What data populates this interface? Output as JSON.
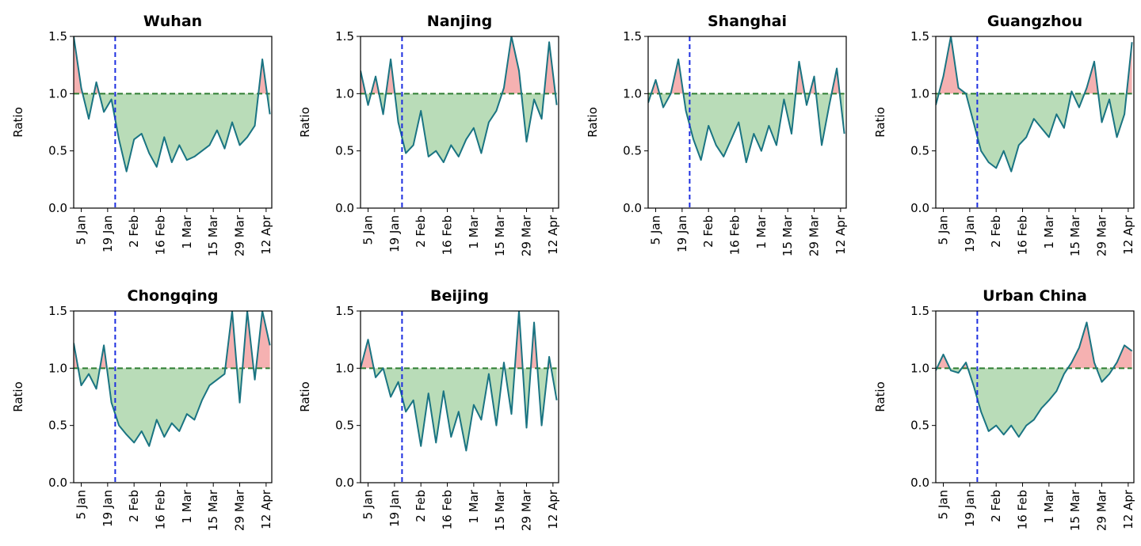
{
  "figure": {
    "charts": [
      {
        "title": "Wuhan",
        "ylabel": "Ratio",
        "lockdown_date": "2020-01-23"
      },
      {
        "title": "Nanjing",
        "ylabel": "Ratio",
        "lockdown_date": "2020-01-23"
      },
      {
        "title": "Shanghai",
        "ylabel": "Ratio",
        "lockdown_date": "2020-01-23"
      },
      {
        "title": "Guangzhou",
        "ylabel": "Ratio",
        "lockdown_date": "2020-01-23"
      },
      {
        "title": "Chongqing",
        "ylabel": "Ratio",
        "lockdown_date": "2020-01-23"
      },
      {
        "title": "Beijing",
        "ylabel": "Ratio",
        "lockdown_date": "2020-01-23"
      },
      {
        "title": "Urban China",
        "ylabel": "Ratio",
        "lockdown_date": "2020-01-23"
      }
    ]
  },
  "chart_data": [
    {
      "type": "line",
      "title": "Wuhan",
      "xlabel": "",
      "ylabel": "Ratio",
      "ylim": [
        0,
        1.5
      ],
      "yticks": [
        "0.0",
        "0.5",
        "1.0",
        "1.5"
      ],
      "xlim": [
        "2020-01-01",
        "2020-04-15"
      ],
      "xticks": [
        {
          "label": "5 Jan",
          "date": "2020-01-05"
        },
        {
          "label": "19 Jan",
          "date": "2020-01-19"
        },
        {
          "label": "2 Feb",
          "date": "2020-02-02"
        },
        {
          "label": "16 Feb",
          "date": "2020-02-16"
        },
        {
          "label": "1 Mar",
          "date": "2020-03-01"
        },
        {
          "label": "15 Mar",
          "date": "2020-03-15"
        },
        {
          "label": "29 Mar",
          "date": "2020-03-29"
        },
        {
          "label": "12 Apr",
          "date": "2020-04-12"
        }
      ],
      "grid": false,
      "reference_line": 1.0,
      "colors": {
        "line": "#1a7482",
        "below_fill": "#b9dcb8",
        "above_fill": "#f5b1b1",
        "reference": "#2e7d32",
        "vertical": "#1d2ee0"
      },
      "x": [
        "2020-01-01",
        "2020-01-05",
        "2020-01-09",
        "2020-01-13",
        "2020-01-17",
        "2020-01-21",
        "2020-01-25",
        "2020-01-29",
        "2020-02-02",
        "2020-02-06",
        "2020-02-10",
        "2020-02-14",
        "2020-02-18",
        "2020-02-22",
        "2020-02-26",
        "2020-03-01",
        "2020-03-05",
        "2020-03-09",
        "2020-03-13",
        "2020-03-17",
        "2020-03-21",
        "2020-03-25",
        "2020-03-29",
        "2020-04-02",
        "2020-04-06",
        "2020-04-10",
        "2020-04-14"
      ],
      "values": [
        1.5,
        1.05,
        0.78,
        1.1,
        0.84,
        0.95,
        0.6,
        0.32,
        0.6,
        0.65,
        0.48,
        0.36,
        0.62,
        0.4,
        0.55,
        0.42,
        0.45,
        0.5,
        0.55,
        0.68,
        0.52,
        0.75,
        0.55,
        0.62,
        0.72,
        1.3,
        0.82
      ]
    },
    {
      "type": "line",
      "title": "Nanjing",
      "xlabel": "",
      "ylabel": "Ratio",
      "ylim": [
        0,
        1.5
      ],
      "yticks": [
        "0.0",
        "0.5",
        "1.0",
        "1.5"
      ],
      "xlim": [
        "2020-01-01",
        "2020-04-15"
      ],
      "xticks": [
        {
          "label": "5 Jan",
          "date": "2020-01-05"
        },
        {
          "label": "19 Jan",
          "date": "2020-01-19"
        },
        {
          "label": "2 Feb",
          "date": "2020-02-02"
        },
        {
          "label": "16 Feb",
          "date": "2020-02-16"
        },
        {
          "label": "1 Mar",
          "date": "2020-03-01"
        },
        {
          "label": "15 Mar",
          "date": "2020-03-15"
        },
        {
          "label": "29 Mar",
          "date": "2020-03-29"
        },
        {
          "label": "12 Apr",
          "date": "2020-04-12"
        }
      ],
      "grid": false,
      "reference_line": 1.0,
      "colors": {
        "line": "#1a7482",
        "below_fill": "#b9dcb8",
        "above_fill": "#f5b1b1",
        "reference": "#2e7d32",
        "vertical": "#1d2ee0"
      },
      "x": [
        "2020-01-01",
        "2020-01-05",
        "2020-01-09",
        "2020-01-13",
        "2020-01-17",
        "2020-01-21",
        "2020-01-25",
        "2020-01-29",
        "2020-02-02",
        "2020-02-06",
        "2020-02-10",
        "2020-02-14",
        "2020-02-18",
        "2020-02-22",
        "2020-02-26",
        "2020-03-01",
        "2020-03-05",
        "2020-03-09",
        "2020-03-13",
        "2020-03-17",
        "2020-03-21",
        "2020-03-25",
        "2020-03-29",
        "2020-04-02",
        "2020-04-06",
        "2020-04-10",
        "2020-04-14"
      ],
      "values": [
        1.2,
        0.9,
        1.15,
        0.82,
        1.3,
        0.75,
        0.48,
        0.55,
        0.85,
        0.45,
        0.5,
        0.4,
        0.55,
        0.45,
        0.6,
        0.7,
        0.48,
        0.75,
        0.85,
        1.05,
        1.5,
        1.2,
        0.58,
        0.95,
        0.78,
        1.45,
        0.9
      ]
    },
    {
      "type": "line",
      "title": "Shanghai",
      "xlabel": "",
      "ylabel": "Ratio",
      "ylim": [
        0,
        1.5
      ],
      "yticks": [
        "0.0",
        "0.5",
        "1.0",
        "1.5"
      ],
      "xlim": [
        "2020-01-01",
        "2020-04-15"
      ],
      "xticks": [
        {
          "label": "5 Jan",
          "date": "2020-01-05"
        },
        {
          "label": "19 Jan",
          "date": "2020-01-19"
        },
        {
          "label": "2 Feb",
          "date": "2020-02-02"
        },
        {
          "label": "16 Feb",
          "date": "2020-02-16"
        },
        {
          "label": "1 Mar",
          "date": "2020-03-01"
        },
        {
          "label": "15 Mar",
          "date": "2020-03-15"
        },
        {
          "label": "29 Mar",
          "date": "2020-03-29"
        },
        {
          "label": "12 Apr",
          "date": "2020-04-12"
        }
      ],
      "grid": false,
      "reference_line": 1.0,
      "colors": {
        "line": "#1a7482",
        "below_fill": "#b9dcb8",
        "above_fill": "#f5b1b1",
        "reference": "#2e7d32",
        "vertical": "#1d2ee0"
      },
      "x": [
        "2020-01-01",
        "2020-01-05",
        "2020-01-09",
        "2020-01-13",
        "2020-01-17",
        "2020-01-21",
        "2020-01-25",
        "2020-01-29",
        "2020-02-02",
        "2020-02-06",
        "2020-02-10",
        "2020-02-14",
        "2020-02-18",
        "2020-02-22",
        "2020-02-26",
        "2020-03-01",
        "2020-03-05",
        "2020-03-09",
        "2020-03-13",
        "2020-03-17",
        "2020-03-21",
        "2020-03-25",
        "2020-03-29",
        "2020-04-02",
        "2020-04-06",
        "2020-04-10",
        "2020-04-14"
      ],
      "values": [
        0.92,
        1.12,
        0.88,
        1.0,
        1.3,
        0.85,
        0.6,
        0.42,
        0.72,
        0.55,
        0.45,
        0.6,
        0.75,
        0.4,
        0.65,
        0.5,
        0.72,
        0.55,
        0.95,
        0.65,
        1.28,
        0.9,
        1.15,
        0.55,
        0.9,
        1.22,
        0.65
      ]
    },
    {
      "type": "line",
      "title": "Guangzhou",
      "xlabel": "",
      "ylabel": "Ratio",
      "ylim": [
        0,
        1.5
      ],
      "yticks": [
        "0.0",
        "0.5",
        "1.0",
        "1.5"
      ],
      "xlim": [
        "2020-01-01",
        "2020-04-15"
      ],
      "xticks": [
        {
          "label": "5 Jan",
          "date": "2020-01-05"
        },
        {
          "label": "19 Jan",
          "date": "2020-01-19"
        },
        {
          "label": "2 Feb",
          "date": "2020-02-02"
        },
        {
          "label": "16 Feb",
          "date": "2020-02-16"
        },
        {
          "label": "1 Mar",
          "date": "2020-03-01"
        },
        {
          "label": "15 Mar",
          "date": "2020-03-15"
        },
        {
          "label": "29 Mar",
          "date": "2020-03-29"
        },
        {
          "label": "12 Apr",
          "date": "2020-04-12"
        }
      ],
      "grid": false,
      "reference_line": 1.0,
      "colors": {
        "line": "#1a7482",
        "below_fill": "#b9dcb8",
        "above_fill": "#f5b1b1",
        "reference": "#2e7d32",
        "vertical": "#1d2ee0"
      },
      "x": [
        "2020-01-01",
        "2020-01-05",
        "2020-01-09",
        "2020-01-13",
        "2020-01-17",
        "2020-01-21",
        "2020-01-25",
        "2020-01-29",
        "2020-02-02",
        "2020-02-06",
        "2020-02-10",
        "2020-02-14",
        "2020-02-18",
        "2020-02-22",
        "2020-02-26",
        "2020-03-01",
        "2020-03-05",
        "2020-03-09",
        "2020-03-13",
        "2020-03-17",
        "2020-03-21",
        "2020-03-25",
        "2020-03-29",
        "2020-04-02",
        "2020-04-06",
        "2020-04-10",
        "2020-04-14"
      ],
      "values": [
        0.9,
        1.15,
        1.5,
        1.05,
        1.0,
        0.75,
        0.5,
        0.4,
        0.35,
        0.5,
        0.32,
        0.55,
        0.62,
        0.78,
        0.7,
        0.62,
        0.82,
        0.7,
        1.02,
        0.88,
        1.05,
        1.28,
        0.75,
        0.95,
        0.62,
        0.82,
        1.45
      ]
    },
    {
      "type": "line",
      "title": "Chongqing",
      "xlabel": "",
      "ylabel": "Ratio",
      "ylim": [
        0,
        1.5
      ],
      "yticks": [
        "0.0",
        "0.5",
        "1.0",
        "1.5"
      ],
      "xlim": [
        "2020-01-01",
        "2020-04-15"
      ],
      "xticks": [
        {
          "label": "5 Jan",
          "date": "2020-01-05"
        },
        {
          "label": "19 Jan",
          "date": "2020-01-19"
        },
        {
          "label": "2 Feb",
          "date": "2020-02-02"
        },
        {
          "label": "16 Feb",
          "date": "2020-02-16"
        },
        {
          "label": "1 Mar",
          "date": "2020-03-01"
        },
        {
          "label": "15 Mar",
          "date": "2020-03-15"
        },
        {
          "label": "29 Mar",
          "date": "2020-03-29"
        },
        {
          "label": "12 Apr",
          "date": "2020-04-12"
        }
      ],
      "grid": false,
      "reference_line": 1.0,
      "colors": {
        "line": "#1a7482",
        "below_fill": "#b9dcb8",
        "above_fill": "#f5b1b1",
        "reference": "#2e7d32",
        "vertical": "#1d2ee0"
      },
      "x": [
        "2020-01-01",
        "2020-01-05",
        "2020-01-09",
        "2020-01-13",
        "2020-01-17",
        "2020-01-21",
        "2020-01-25",
        "2020-01-29",
        "2020-02-02",
        "2020-02-06",
        "2020-02-10",
        "2020-02-14",
        "2020-02-18",
        "2020-02-22",
        "2020-02-26",
        "2020-03-01",
        "2020-03-05",
        "2020-03-09",
        "2020-03-13",
        "2020-03-17",
        "2020-03-21",
        "2020-03-25",
        "2020-03-29",
        "2020-04-02",
        "2020-04-06",
        "2020-04-10",
        "2020-04-14"
      ],
      "values": [
        1.22,
        0.85,
        0.95,
        0.82,
        1.2,
        0.7,
        0.5,
        0.42,
        0.35,
        0.45,
        0.32,
        0.55,
        0.4,
        0.52,
        0.45,
        0.6,
        0.55,
        0.72,
        0.85,
        0.9,
        0.95,
        1.5,
        0.7,
        1.5,
        0.9,
        1.5,
        1.2
      ]
    },
    {
      "type": "line",
      "title": "Beijing",
      "xlabel": "",
      "ylabel": "Ratio",
      "ylim": [
        0,
        1.5
      ],
      "yticks": [
        "0.0",
        "0.5",
        "1.0",
        "1.5"
      ],
      "xlim": [
        "2020-01-01",
        "2020-04-15"
      ],
      "xticks": [
        {
          "label": "5 Jan",
          "date": "2020-01-05"
        },
        {
          "label": "19 Jan",
          "date": "2020-01-19"
        },
        {
          "label": "2 Feb",
          "date": "2020-02-02"
        },
        {
          "label": "16 Feb",
          "date": "2020-02-16"
        },
        {
          "label": "1 Mar",
          "date": "2020-03-01"
        },
        {
          "label": "15 Mar",
          "date": "2020-03-15"
        },
        {
          "label": "29 Mar",
          "date": "2020-03-29"
        },
        {
          "label": "12 Apr",
          "date": "2020-04-12"
        }
      ],
      "grid": false,
      "reference_line": 1.0,
      "colors": {
        "line": "#1a7482",
        "below_fill": "#b9dcb8",
        "above_fill": "#f5b1b1",
        "reference": "#2e7d32",
        "vertical": "#1d2ee0"
      },
      "x": [
        "2020-01-01",
        "2020-01-05",
        "2020-01-09",
        "2020-01-13",
        "2020-01-17",
        "2020-01-21",
        "2020-01-25",
        "2020-01-29",
        "2020-02-02",
        "2020-02-06",
        "2020-02-10",
        "2020-02-14",
        "2020-02-18",
        "2020-02-22",
        "2020-02-26",
        "2020-03-01",
        "2020-03-05",
        "2020-03-09",
        "2020-03-13",
        "2020-03-17",
        "2020-03-21",
        "2020-03-25",
        "2020-03-29",
        "2020-04-02",
        "2020-04-06",
        "2020-04-10",
        "2020-04-14"
      ],
      "values": [
        1.0,
        1.25,
        0.92,
        1.0,
        0.75,
        0.88,
        0.62,
        0.72,
        0.32,
        0.78,
        0.35,
        0.8,
        0.4,
        0.62,
        0.28,
        0.68,
        0.55,
        0.95,
        0.5,
        1.05,
        0.6,
        1.5,
        0.48,
        1.4,
        0.5,
        1.1,
        0.72
      ]
    },
    {
      "type": "line",
      "title": "Urban China",
      "xlabel": "",
      "ylabel": "Ratio",
      "ylim": [
        0,
        1.5
      ],
      "yticks": [
        "0.0",
        "0.5",
        "1.0",
        "1.5"
      ],
      "xlim": [
        "2020-01-01",
        "2020-04-15"
      ],
      "xticks": [
        {
          "label": "5 Jan",
          "date": "2020-01-05"
        },
        {
          "label": "19 Jan",
          "date": "2020-01-19"
        },
        {
          "label": "2 Feb",
          "date": "2020-02-02"
        },
        {
          "label": "16 Feb",
          "date": "2020-02-16"
        },
        {
          "label": "1 Mar",
          "date": "2020-03-01"
        },
        {
          "label": "15 Mar",
          "date": "2020-03-15"
        },
        {
          "label": "29 Mar",
          "date": "2020-03-29"
        },
        {
          "label": "12 Apr",
          "date": "2020-04-12"
        }
      ],
      "grid": false,
      "reference_line": 1.0,
      "colors": {
        "line": "#1a7482",
        "below_fill": "#b9dcb8",
        "above_fill": "#f5b1b1",
        "reference": "#2e7d32",
        "vertical": "#1d2ee0"
      },
      "x": [
        "2020-01-01",
        "2020-01-05",
        "2020-01-09",
        "2020-01-13",
        "2020-01-17",
        "2020-01-21",
        "2020-01-25",
        "2020-01-29",
        "2020-02-02",
        "2020-02-06",
        "2020-02-10",
        "2020-02-14",
        "2020-02-18",
        "2020-02-22",
        "2020-02-26",
        "2020-03-01",
        "2020-03-05",
        "2020-03-09",
        "2020-03-13",
        "2020-03-17",
        "2020-03-21",
        "2020-03-25",
        "2020-03-29",
        "2020-04-02",
        "2020-04-06",
        "2020-04-10",
        "2020-04-14"
      ],
      "values": [
        0.98,
        1.12,
        0.98,
        0.96,
        1.05,
        0.85,
        0.62,
        0.45,
        0.5,
        0.42,
        0.5,
        0.4,
        0.5,
        0.55,
        0.65,
        0.72,
        0.8,
        0.95,
        1.05,
        1.18,
        1.4,
        1.05,
        0.88,
        0.95,
        1.05,
        1.2,
        1.15
      ]
    }
  ]
}
